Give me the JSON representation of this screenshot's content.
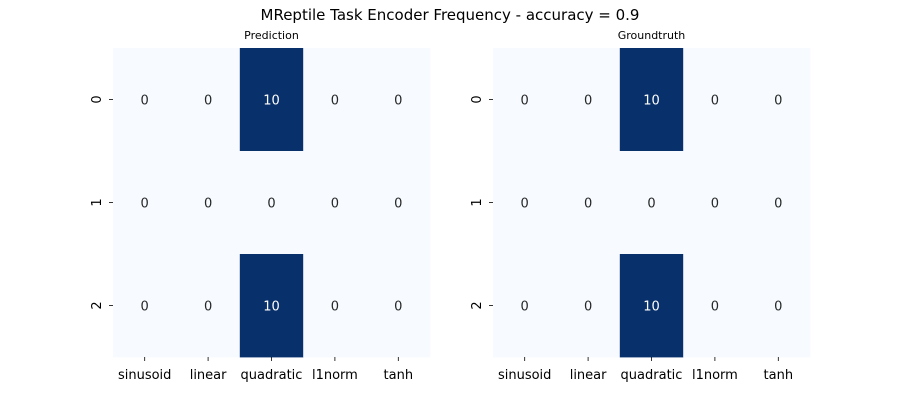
{
  "chart_data": {
    "title": "MReptile Task Encoder Frequency - accuracy = 0.9",
    "type": "heatmap",
    "colormap": "Blues",
    "value_range": [
      0,
      10
    ],
    "colors": {
      "low": "#f7fbff",
      "high": "#08306b",
      "annotation_on_low": "#262626",
      "annotation_on_high": "#ffffff"
    },
    "panels": [
      {
        "title": "Prediction",
        "columns": [
          "sinusoid",
          "linear",
          "quadratic",
          "l1norm",
          "tanh"
        ],
        "rows": [
          "0",
          "1",
          "2"
        ],
        "values": [
          [
            0,
            0,
            10,
            0,
            0
          ],
          [
            0,
            0,
            0,
            0,
            0
          ],
          [
            0,
            0,
            10,
            0,
            0
          ]
        ]
      },
      {
        "title": "Groundtruth",
        "columns": [
          "sinusoid",
          "linear",
          "quadratic",
          "l1norm",
          "tanh"
        ],
        "rows": [
          "0",
          "1",
          "2"
        ],
        "values": [
          [
            0,
            0,
            10,
            0,
            0
          ],
          [
            0,
            0,
            0,
            0,
            0
          ],
          [
            0,
            0,
            10,
            0,
            0
          ]
        ]
      }
    ]
  }
}
